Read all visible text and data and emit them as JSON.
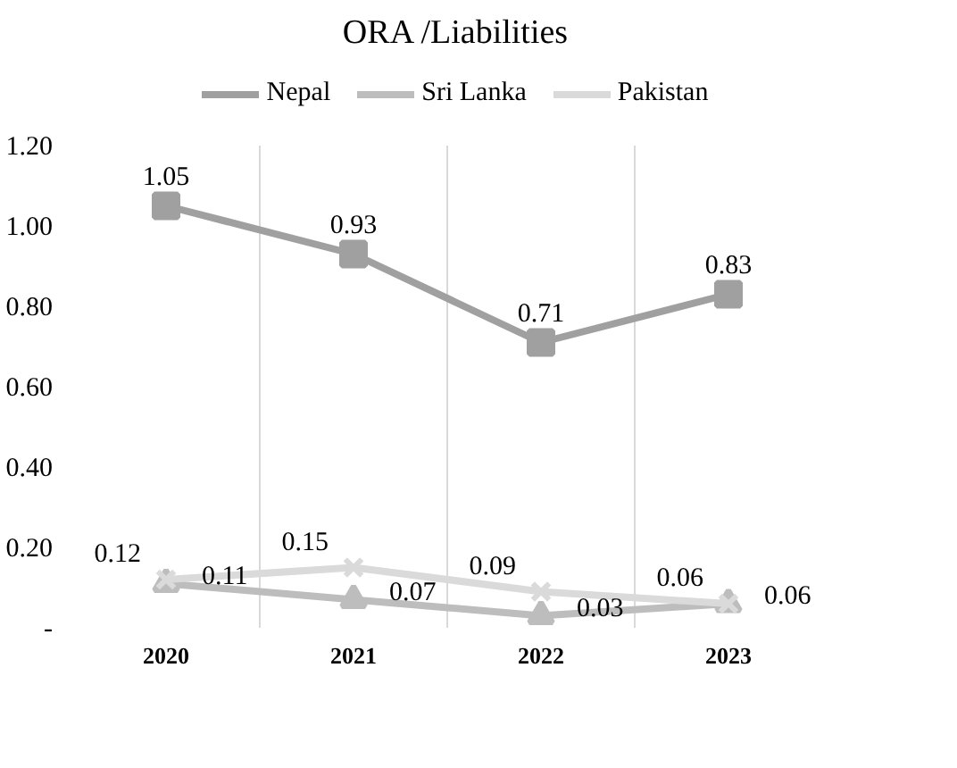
{
  "chart_data": {
    "type": "line",
    "title": "ORA /Liabilities",
    "categories": [
      "2020",
      "2021",
      "2022",
      "2023"
    ],
    "series": [
      {
        "name": "Nepal",
        "color": "#a0a0a0",
        "marker": "square",
        "values": [
          1.05,
          0.93,
          0.71,
          0.83
        ]
      },
      {
        "name": "Sri Lanka",
        "color": "#bdbdbd",
        "marker": "triangle",
        "values": [
          0.11,
          0.07,
          0.03,
          0.06
        ]
      },
      {
        "name": "Pakistan",
        "color": "#dadada",
        "marker": "cross",
        "values": [
          0.12,
          0.15,
          0.09,
          0.06
        ]
      }
    ],
    "ylim": [
      0,
      1.2
    ],
    "yticks": [
      {
        "value": 0,
        "label": "-"
      },
      {
        "value": 0.2,
        "label": "0.20"
      },
      {
        "value": 0.4,
        "label": "0.40"
      },
      {
        "value": 0.6,
        "label": "0.60"
      },
      {
        "value": 0.8,
        "label": "0.80"
      },
      {
        "value": 1.0,
        "label": "1.00"
      },
      {
        "value": 1.2,
        "label": "1.20"
      }
    ],
    "grid": "x",
    "legend": "top",
    "data_labels": true,
    "line_style": "solid"
  }
}
